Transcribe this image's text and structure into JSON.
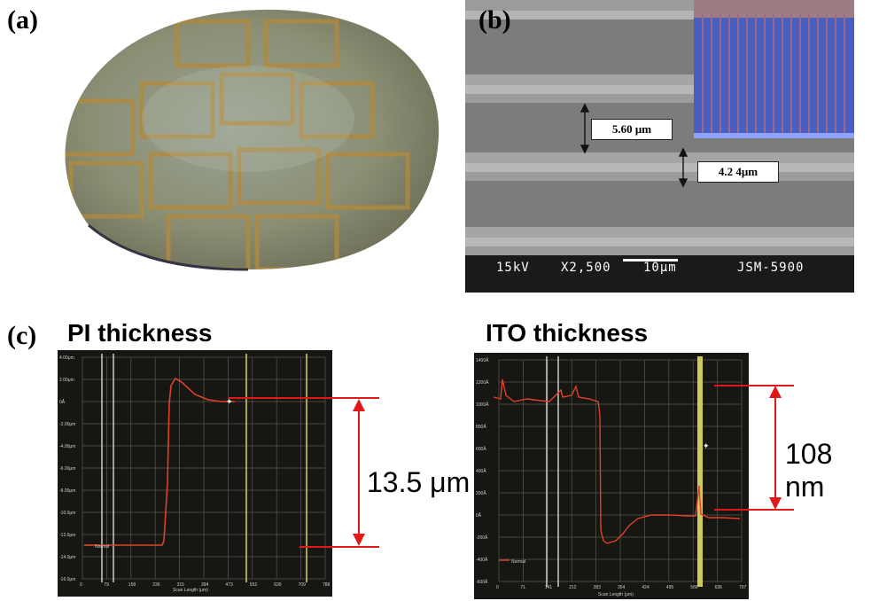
{
  "panel_a": {
    "label": "(a)"
  },
  "panel_b": {
    "label": "(b)",
    "dim1": "5.60 μm",
    "dim2": "4.2 4μm",
    "footer": {
      "voltage": "15kV",
      "magnification": "X2,500",
      "scale": "10μm",
      "instrument": "JSM-5900"
    }
  },
  "panel_c": {
    "label": "(c)",
    "left": {
      "title": "PI thickness",
      "measurement": "13.5 μm",
      "y_ticks": [
        "4.00μm",
        "2.00μm",
        "0Å",
        "-2.00μm",
        "-4.00μm",
        "-6.00μm",
        "-8.00μm",
        "-10.0μm",
        "-12.0μm",
        "-14.0μm",
        "-16.0μm"
      ],
      "x_ticks": [
        "0",
        "79",
        "158",
        "236",
        "315",
        "394",
        "473",
        "552",
        "630",
        "709",
        "788"
      ],
      "x_label": "Scan Length (μm)",
      "legend": "Normal"
    },
    "right": {
      "title": "ITO thickness",
      "measurement": "108 nm",
      "y_ticks": [
        "1400Å",
        "1200Å",
        "1000Å",
        "800Å",
        "600Å",
        "400Å",
        "200Å",
        "0Å",
        "-200Å",
        "-400Å",
        "-600Å"
      ],
      "x_ticks": [
        "0",
        "71",
        "141",
        "212",
        "283",
        "354",
        "424",
        "495",
        "566",
        "636",
        "707"
      ],
      "x_label": "Scan Length (μm)",
      "legend": "Normal"
    }
  }
}
